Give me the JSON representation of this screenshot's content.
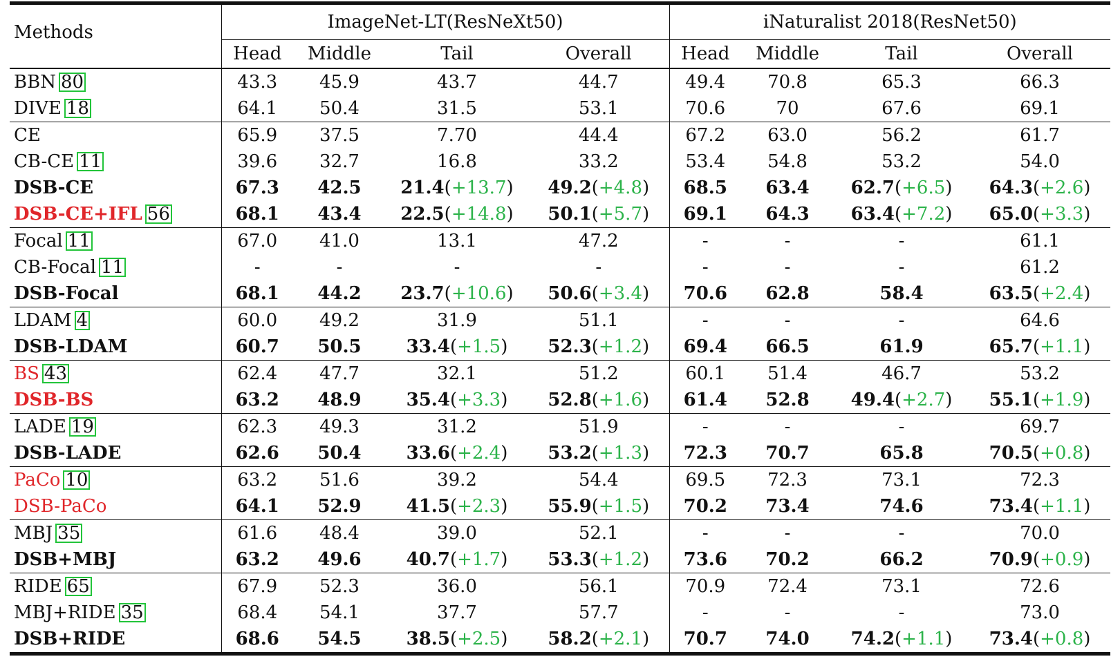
{
  "header": {
    "methods": "Methods",
    "group1": "ImageNet-LT(ResNeXt50)",
    "group2": "iNaturalist 2018(ResNet50)",
    "cols": [
      "Head",
      "Middle",
      "Tail",
      "Overall",
      "Head",
      "Middle",
      "Tail",
      "Overall"
    ]
  },
  "rows": [
    {
      "name": "BBN",
      "cite": "80",
      "bold": false,
      "red": false,
      "group_start": true,
      "cells": [
        [
          "43.3",
          ""
        ],
        [
          "45.9",
          ""
        ],
        [
          "43.7",
          ""
        ],
        [
          "44.7",
          ""
        ],
        [
          "49.4",
          ""
        ],
        [
          "70.8",
          ""
        ],
        [
          "65.3",
          ""
        ],
        [
          "66.3",
          ""
        ]
      ]
    },
    {
      "name": "DIVE",
      "cite": "18",
      "bold": false,
      "red": false,
      "group_start": false,
      "cells": [
        [
          "64.1",
          ""
        ],
        [
          "50.4",
          ""
        ],
        [
          "31.5",
          ""
        ],
        [
          "53.1",
          ""
        ],
        [
          "70.6",
          ""
        ],
        [
          "70",
          ""
        ],
        [
          "67.6",
          ""
        ],
        [
          "69.1",
          ""
        ]
      ]
    },
    {
      "name": "CE",
      "cite": "",
      "bold": false,
      "red": false,
      "group_start": true,
      "cells": [
        [
          "65.9",
          ""
        ],
        [
          "37.5",
          ""
        ],
        [
          "7.70",
          ""
        ],
        [
          "44.4",
          ""
        ],
        [
          "67.2",
          ""
        ],
        [
          "63.0",
          ""
        ],
        [
          "56.2",
          ""
        ],
        [
          "61.7",
          ""
        ]
      ]
    },
    {
      "name": "CB-CE",
      "cite": "11",
      "bold": false,
      "red": false,
      "group_start": false,
      "cells": [
        [
          "39.6",
          ""
        ],
        [
          "32.7",
          ""
        ],
        [
          "16.8",
          ""
        ],
        [
          "33.2",
          ""
        ],
        [
          "53.4",
          ""
        ],
        [
          "54.8",
          ""
        ],
        [
          "53.2",
          ""
        ],
        [
          "54.0",
          ""
        ]
      ]
    },
    {
      "name": "DSB-CE",
      "cite": "",
      "bold": true,
      "red": false,
      "group_start": false,
      "cells": [
        [
          "67.3",
          ""
        ],
        [
          "42.5",
          ""
        ],
        [
          "21.4",
          "(+13.7)"
        ],
        [
          "49.2",
          "(+4.8)"
        ],
        [
          "68.5",
          ""
        ],
        [
          "63.4",
          ""
        ],
        [
          "62.7",
          "(+6.5)"
        ],
        [
          "64.3",
          "(+2.6)"
        ]
      ]
    },
    {
      "name": "DSB-CE+IFL",
      "cite": "56",
      "bold": true,
      "red": true,
      "group_start": false,
      "cells": [
        [
          "68.1",
          ""
        ],
        [
          "43.4",
          ""
        ],
        [
          "22.5",
          "(+14.8)"
        ],
        [
          "50.1",
          "(+5.7)"
        ],
        [
          "69.1",
          ""
        ],
        [
          "64.3",
          ""
        ],
        [
          "63.4",
          "(+7.2)"
        ],
        [
          "65.0",
          "(+3.3)"
        ]
      ]
    },
    {
      "name": "Focal",
      "cite": "11",
      "bold": false,
      "red": false,
      "group_start": true,
      "cells": [
        [
          "67.0",
          ""
        ],
        [
          "41.0",
          ""
        ],
        [
          "13.1",
          ""
        ],
        [
          "47.2",
          ""
        ],
        [
          "-",
          ""
        ],
        [
          "-",
          ""
        ],
        [
          "-",
          ""
        ],
        [
          "61.1",
          ""
        ]
      ]
    },
    {
      "name": "CB-Focal",
      "cite": "11",
      "bold": false,
      "red": false,
      "group_start": false,
      "cells": [
        [
          "-",
          ""
        ],
        [
          "-",
          ""
        ],
        [
          "-",
          ""
        ],
        [
          "-",
          ""
        ],
        [
          "-",
          ""
        ],
        [
          "-",
          ""
        ],
        [
          "-",
          ""
        ],
        [
          "61.2",
          ""
        ]
      ]
    },
    {
      "name": "DSB-Focal",
      "cite": "",
      "bold": true,
      "red": false,
      "group_start": false,
      "cells": [
        [
          "68.1",
          ""
        ],
        [
          "44.2",
          ""
        ],
        [
          "23.7",
          "(+10.6)"
        ],
        [
          "50.6",
          "(+3.4)"
        ],
        [
          "70.6",
          ""
        ],
        [
          "62.8",
          ""
        ],
        [
          "58.4",
          ""
        ],
        [
          "63.5",
          "(+2.4)"
        ]
      ]
    },
    {
      "name": "LDAM",
      "cite": "4",
      "bold": false,
      "red": false,
      "group_start": true,
      "cells": [
        [
          "60.0",
          ""
        ],
        [
          "49.2",
          ""
        ],
        [
          "31.9",
          ""
        ],
        [
          "51.1",
          ""
        ],
        [
          "-",
          ""
        ],
        [
          "-",
          ""
        ],
        [
          "-",
          ""
        ],
        [
          "64.6",
          ""
        ]
      ]
    },
    {
      "name": "DSB-LDAM",
      "cite": "",
      "bold": true,
      "red": false,
      "group_start": false,
      "cells": [
        [
          "60.7",
          ""
        ],
        [
          "50.5",
          ""
        ],
        [
          "33.4",
          "(+1.5)"
        ],
        [
          "52.3",
          "(+1.2)"
        ],
        [
          "69.4",
          ""
        ],
        [
          "66.5",
          ""
        ],
        [
          "61.9",
          ""
        ],
        [
          "65.7",
          "(+1.1)"
        ]
      ]
    },
    {
      "name": "BS",
      "cite": "43",
      "bold": false,
      "red": true,
      "group_start": true,
      "cells": [
        [
          "62.4",
          ""
        ],
        [
          "47.7",
          ""
        ],
        [
          "32.1",
          ""
        ],
        [
          "51.2",
          ""
        ],
        [
          "60.1",
          ""
        ],
        [
          "51.4",
          ""
        ],
        [
          "46.7",
          ""
        ],
        [
          "53.2",
          ""
        ]
      ]
    },
    {
      "name": "DSB-BS",
      "cite": "",
      "bold": true,
      "red": true,
      "group_start": false,
      "cells": [
        [
          "63.2",
          ""
        ],
        [
          "48.9",
          ""
        ],
        [
          "35.4",
          "(+3.3)"
        ],
        [
          "52.8",
          "(+1.6)"
        ],
        [
          "61.4",
          ""
        ],
        [
          "52.8",
          ""
        ],
        [
          "49.4",
          "(+2.7)"
        ],
        [
          "55.1",
          "(+1.9)"
        ]
      ]
    },
    {
      "name": "LADE",
      "cite": "19",
      "bold": false,
      "red": false,
      "group_start": true,
      "cells": [
        [
          "62.3",
          ""
        ],
        [
          "49.3",
          ""
        ],
        [
          "31.2",
          ""
        ],
        [
          "51.9",
          ""
        ],
        [
          "-",
          ""
        ],
        [
          "-",
          ""
        ],
        [
          "-",
          ""
        ],
        [
          "69.7",
          ""
        ]
      ]
    },
    {
      "name": "DSB-LADE",
      "cite": "",
      "bold": true,
      "red": false,
      "group_start": false,
      "cells": [
        [
          "62.6",
          ""
        ],
        [
          "50.4",
          ""
        ],
        [
          "33.6",
          "(+2.4)"
        ],
        [
          "53.2",
          "(+1.3)"
        ],
        [
          "72.3",
          ""
        ],
        [
          "70.7",
          ""
        ],
        [
          "65.8",
          ""
        ],
        [
          "70.5",
          "(+0.8)"
        ]
      ]
    },
    {
      "name": "PaCo",
      "cite": "10",
      "bold": false,
      "red": true,
      "group_start": true,
      "cells": [
        [
          "63.2",
          ""
        ],
        [
          "51.6",
          ""
        ],
        [
          "39.2",
          ""
        ],
        [
          "54.4",
          ""
        ],
        [
          "69.5",
          ""
        ],
        [
          "72.3",
          ""
        ],
        [
          "73.1",
          ""
        ],
        [
          "72.3",
          ""
        ]
      ]
    },
    {
      "name": "DSB-PaCo",
      "cite": "",
      "bold": false,
      "red": true,
      "bold_values": true,
      "group_start": false,
      "cells": [
        [
          "64.1",
          ""
        ],
        [
          "52.9",
          ""
        ],
        [
          "41.5",
          "(+2.3)"
        ],
        [
          "55.9",
          "(+1.5)"
        ],
        [
          "70.2",
          ""
        ],
        [
          "73.4",
          ""
        ],
        [
          "74.6",
          ""
        ],
        [
          "73.4",
          "(+1.1)"
        ]
      ]
    },
    {
      "name": "MBJ",
      "cite": "35",
      "bold": false,
      "red": false,
      "group_start": true,
      "cells": [
        [
          "61.6",
          ""
        ],
        [
          "48.4",
          ""
        ],
        [
          "39.0",
          ""
        ],
        [
          "52.1",
          ""
        ],
        [
          "-",
          ""
        ],
        [
          "-",
          ""
        ],
        [
          "-",
          ""
        ],
        [
          "70.0",
          ""
        ]
      ]
    },
    {
      "name": "DSB+MBJ",
      "cite": "",
      "bold": true,
      "red": false,
      "group_start": false,
      "cells": [
        [
          "63.2",
          ""
        ],
        [
          "49.6",
          ""
        ],
        [
          "40.7",
          "(+1.7)"
        ],
        [
          "53.3",
          "(+1.2)"
        ],
        [
          "73.6",
          ""
        ],
        [
          "70.2",
          ""
        ],
        [
          "66.2",
          ""
        ],
        [
          "70.9",
          "(+0.9)"
        ]
      ]
    },
    {
      "name": "RIDE",
      "cite": "65",
      "bold": false,
      "red": false,
      "group_start": true,
      "cells": [
        [
          "67.9",
          ""
        ],
        [
          "52.3",
          ""
        ],
        [
          "36.0",
          ""
        ],
        [
          "56.1",
          ""
        ],
        [
          "70.9",
          ""
        ],
        [
          "72.4",
          ""
        ],
        [
          "73.1",
          ""
        ],
        [
          "72.6",
          ""
        ]
      ]
    },
    {
      "name": "MBJ+RIDE",
      "cite": "35",
      "bold": false,
      "red": false,
      "group_start": false,
      "cells": [
        [
          "68.4",
          ""
        ],
        [
          "54.1",
          ""
        ],
        [
          "37.7",
          ""
        ],
        [
          "57.7",
          ""
        ],
        [
          "-",
          ""
        ],
        [
          "-",
          ""
        ],
        [
          "-",
          ""
        ],
        [
          "73.0",
          ""
        ]
      ]
    },
    {
      "name": "DSB+RIDE",
      "cite": "",
      "bold": true,
      "red": false,
      "group_start": false,
      "cells": [
        [
          "68.6",
          ""
        ],
        [
          "54.5",
          ""
        ],
        [
          "38.5",
          "(+2.5)"
        ],
        [
          "58.2",
          "(+2.1)"
        ],
        [
          "70.7",
          ""
        ],
        [
          "74.0",
          ""
        ],
        [
          "74.2",
          "(+1.1)"
        ],
        [
          "73.4",
          "(+0.8)"
        ]
      ]
    }
  ],
  "colors": {
    "text": "#111111",
    "highlight_red": "#e0262a",
    "gain_green": "#2cb34a",
    "cite_box": "#22c43a"
  }
}
